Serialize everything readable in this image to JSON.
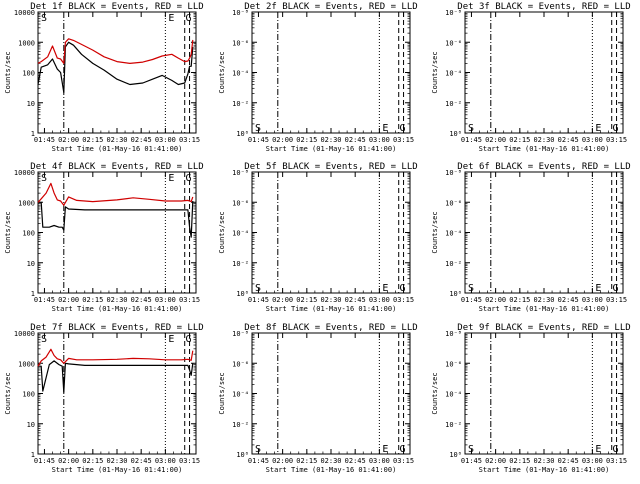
{
  "colors": {
    "events": "#000000",
    "lld": "#d00000",
    "axis": "#000000"
  },
  "panels": [
    {
      "title": "Det 1f BLACK = Events, RED = LLD",
      "xlabel": "Start Time (01-May-16 01:41:00)",
      "ylabel": "Counts/sec",
      "yticks": [
        "1",
        "10",
        "100",
        "1000",
        "10000"
      ],
      "xticks": [
        "01:45",
        "02:00",
        "02:15",
        "02:30",
        "02:45",
        "03:00",
        "03:15"
      ],
      "markers": [
        {
          "label": "S",
          "pos": "top"
        },
        {
          "label": "E",
          "pos": "top"
        },
        {
          "label": "G",
          "pos": "top"
        }
      ]
    },
    {
      "title": "Det 2f BLACK = Events, RED = LLD",
      "xlabel": "Start Time (01-May-16 01:41:00)",
      "ylabel": "Counts/sec",
      "yticks": [
        "10⁰",
        "10⁻²",
        "10⁻⁴",
        "10⁻⁶",
        "10⁻⁸"
      ],
      "xticks": [
        "01:45",
        "02:00",
        "02:15",
        "02:30",
        "02:45",
        "03:00",
        "03:15"
      ],
      "markers": [
        {
          "label": "S",
          "pos": "bottom"
        },
        {
          "label": "E",
          "pos": "bottom"
        },
        {
          "label": "G",
          "pos": "bottom"
        }
      ]
    },
    {
      "title": "Det 3f BLACK = Events, RED = LLD",
      "xlabel": "Start Time (01-May-16 01:41:00)",
      "ylabel": "Counts/sec",
      "yticks": [
        "10⁰",
        "10⁻²",
        "10⁻⁴",
        "10⁻⁶",
        "10⁻⁸"
      ],
      "xticks": [
        "01:45",
        "02:00",
        "02:15",
        "02:30",
        "02:45",
        "03:00",
        "03:15"
      ],
      "markers": [
        {
          "label": "S",
          "pos": "bottom"
        },
        {
          "label": "E",
          "pos": "bottom"
        },
        {
          "label": "G",
          "pos": "bottom"
        }
      ]
    },
    {
      "title": "Det 4f BLACK = Events, RED = LLD",
      "xlabel": "Start Time (01-May-16 01:41:00)",
      "ylabel": "Counts/sec",
      "yticks": [
        "1",
        "10",
        "100",
        "1000",
        "10000"
      ],
      "xticks": [
        "01:45",
        "02:00",
        "02:15",
        "02:30",
        "02:45",
        "03:00",
        "03:15"
      ],
      "markers": [
        {
          "label": "S",
          "pos": "top"
        },
        {
          "label": "E",
          "pos": "top"
        },
        {
          "label": "G",
          "pos": "top"
        }
      ]
    },
    {
      "title": "Det 5f BLACK = Events, RED = LLD",
      "xlabel": "Start Time (01-May-16 01:41:00)",
      "ylabel": "Counts/sec",
      "yticks": [
        "10⁰",
        "10⁻²",
        "10⁻⁴",
        "10⁻⁶",
        "10⁻⁸"
      ],
      "xticks": [
        "01:45",
        "02:00",
        "02:15",
        "02:30",
        "02:45",
        "03:00",
        "03:15"
      ],
      "markers": [
        {
          "label": "S",
          "pos": "bottom"
        },
        {
          "label": "E",
          "pos": "bottom"
        },
        {
          "label": "G",
          "pos": "bottom"
        }
      ]
    },
    {
      "title": "Det 6f BLACK = Events, RED = LLD",
      "xlabel": "Start Time (01-May-16 01:41:00)",
      "ylabel": "Counts/sec",
      "yticks": [
        "10⁰",
        "10⁻²",
        "10⁻⁴",
        "10⁻⁶",
        "10⁻⁸"
      ],
      "xticks": [
        "01:45",
        "02:00",
        "02:15",
        "02:30",
        "02:45",
        "03:00",
        "03:15"
      ],
      "markers": [
        {
          "label": "S",
          "pos": "bottom"
        },
        {
          "label": "E",
          "pos": "bottom"
        },
        {
          "label": "G",
          "pos": "bottom"
        }
      ]
    },
    {
      "title": "Det 7f BLACK = Events, RED = LLD",
      "xlabel": "Start Time (01-May-16 01:41:00)",
      "ylabel": "Counts/sec",
      "yticks": [
        "1",
        "10",
        "100",
        "1000",
        "10000"
      ],
      "xticks": [
        "01:45",
        "02:00",
        "02:15",
        "02:30",
        "02:45",
        "03:00",
        "03:15"
      ],
      "markers": [
        {
          "label": "S",
          "pos": "top"
        },
        {
          "label": "E",
          "pos": "top"
        },
        {
          "label": "G",
          "pos": "top"
        }
      ]
    },
    {
      "title": "Det 8f BLACK = Events, RED = LLD",
      "xlabel": "Start Time (01-May-16 01:41:00)",
      "ylabel": "Counts/sec",
      "yticks": [
        "10⁰",
        "10⁻²",
        "10⁻⁴",
        "10⁻⁶",
        "10⁻⁸"
      ],
      "xticks": [
        "01:45",
        "02:00",
        "02:15",
        "02:30",
        "02:45",
        "03:00",
        "03:15"
      ],
      "markers": [
        {
          "label": "S",
          "pos": "bottom"
        },
        {
          "label": "E",
          "pos": "bottom"
        },
        {
          "label": "G",
          "pos": "bottom"
        }
      ]
    },
    {
      "title": "Det 9f BLACK = Events, RED = LLD",
      "xlabel": "Start Time (01-May-16 01:41:00)",
      "ylabel": "Counts/sec",
      "yticks": [
        "10⁰",
        "10⁻²",
        "10⁻⁴",
        "10⁻⁶",
        "10⁻⁸"
      ],
      "xticks": [
        "01:45",
        "02:00",
        "02:15",
        "02:30",
        "02:45",
        "03:00",
        "03:15"
      ],
      "markers": [
        {
          "label": "S",
          "pos": "bottom"
        },
        {
          "label": "E",
          "pos": "bottom"
        },
        {
          "label": "G",
          "pos": "bottom"
        }
      ]
    }
  ],
  "chart_data": [
    {
      "type": "line",
      "title": "Det 1f BLACK = Events, RED = LLD",
      "xlabel": "Start Time (01-May-16 01:41:00)",
      "ylabel": "Counts/sec",
      "scale": "log",
      "ylim": [
        1,
        10000
      ],
      "xlim": [
        "01:41",
        "03:19"
      ],
      "vlines": [
        {
          "t": "01:57",
          "style": "dash-dot"
        },
        {
          "t": "03:00",
          "style": "dotted"
        },
        {
          "t": "03:12",
          "style": "dashed"
        },
        {
          "t": "03:15",
          "style": "dashed"
        }
      ],
      "series": [
        {
          "name": "Events",
          "color": "#000000",
          "x": [
            "01:41",
            "01:43",
            "01:47",
            "01:50",
            "01:53",
            "01:55",
            "01:57",
            "01:58",
            "02:00",
            "02:03",
            "02:08",
            "02:15",
            "02:22",
            "02:30",
            "02:38",
            "02:46",
            "02:52",
            "02:58",
            "03:04",
            "03:08",
            "03:12",
            "03:14",
            "03:15",
            "03:16",
            "03:17"
          ],
          "y": [
            40,
            150,
            180,
            280,
            130,
            100,
            22,
            700,
            1000,
            800,
            400,
            200,
            120,
            60,
            40,
            45,
            60,
            80,
            55,
            40,
            45,
            90,
            160,
            160,
            700
          ]
        },
        {
          "name": "LLD",
          "color": "#d00000",
          "x": [
            "01:41",
            "01:43",
            "01:47",
            "01:50",
            "01:53",
            "01:55",
            "01:57",
            "01:58",
            "02:00",
            "02:03",
            "02:08",
            "02:15",
            "02:22",
            "02:30",
            "02:38",
            "02:46",
            "02:52",
            "02:58",
            "03:04",
            "03:08",
            "03:12",
            "03:14",
            "03:15",
            "03:16",
            "03:17"
          ],
          "y": [
            200,
            230,
            330,
            750,
            300,
            280,
            200,
            1000,
            1300,
            1150,
            850,
            550,
            330,
            230,
            200,
            220,
            270,
            350,
            400,
            300,
            230,
            240,
            300,
            400,
            1200
          ]
        }
      ]
    },
    {
      "type": "line",
      "title": "Det 2f BLACK = Events, RED = LLD",
      "xlabel": "Start Time (01-May-16 01:41:00)",
      "ylabel": "Counts/sec",
      "scale": "log",
      "ylim": [
        "10^0",
        "10^-8"
      ],
      "series": [],
      "vlines": [
        {
          "t": "01:57",
          "style": "dash-dot"
        },
        {
          "t": "03:00",
          "style": "dotted"
        },
        {
          "t": "03:12",
          "style": "dashed"
        },
        {
          "t": "03:15",
          "style": "dashed"
        }
      ]
    },
    {
      "type": "line",
      "title": "Det 3f BLACK = Events, RED = LLD",
      "xlabel": "Start Time (01-May-16 01:41:00)",
      "ylabel": "Counts/sec",
      "scale": "log",
      "ylim": [
        "10^0",
        "10^-8"
      ],
      "series": [],
      "vlines": [
        {
          "t": "01:57",
          "style": "dash-dot"
        },
        {
          "t": "03:00",
          "style": "dotted"
        },
        {
          "t": "03:12",
          "style": "dashed"
        },
        {
          "t": "03:15",
          "style": "dashed"
        }
      ]
    },
    {
      "type": "line",
      "title": "Det 4f BLACK = Events, RED = LLD",
      "xlabel": "Start Time (01-May-16 01:41:00)",
      "ylabel": "Counts/sec",
      "scale": "log",
      "ylim": [
        1,
        10000
      ],
      "xlim": [
        "01:41",
        "03:19"
      ],
      "vlines": [
        {
          "t": "01:57",
          "style": "dash-dot"
        },
        {
          "t": "03:00",
          "style": "dotted"
        },
        {
          "t": "03:12",
          "style": "dashed"
        },
        {
          "t": "03:15",
          "style": "dashed"
        }
      ],
      "series": [
        {
          "name": "Events",
          "color": "#000000",
          "x": [
            "01:41",
            "01:43",
            "01:44",
            "01:48",
            "01:51",
            "01:54",
            "01:56",
            "01:57",
            "01:58",
            "02:00",
            "02:10",
            "02:30",
            "02:50",
            "03:10",
            "03:14",
            "03:15",
            "03:16",
            "03:17"
          ],
          "y": [
            1000,
            1000,
            150,
            150,
            170,
            150,
            150,
            120,
            700,
            600,
            560,
            560,
            560,
            560,
            560,
            150,
            70,
            1100
          ]
        },
        {
          "name": "LLD",
          "color": "#d00000",
          "x": [
            "01:41",
            "01:43",
            "01:46",
            "01:49",
            "01:51",
            "01:53",
            "01:55",
            "01:57",
            "02:00",
            "02:05",
            "02:15",
            "02:30",
            "02:40",
            "02:50",
            "03:00",
            "03:10",
            "03:14",
            "03:15",
            "03:16",
            "03:17"
          ],
          "y": [
            1000,
            1300,
            2000,
            4200,
            2000,
            1200,
            1100,
            800,
            1500,
            1150,
            1050,
            1200,
            1400,
            1250,
            1100,
            1100,
            1150,
            1100,
            1050,
            1500
          ]
        }
      ]
    },
    {
      "type": "line",
      "title": "Det 5f BLACK = Events, RED = LLD",
      "xlabel": "Start Time (01-May-16 01:41:00)",
      "ylabel": "Counts/sec",
      "scale": "log",
      "ylim": [
        "10^0",
        "10^-8"
      ],
      "series": [],
      "vlines": [
        {
          "t": "01:57",
          "style": "dash-dot"
        },
        {
          "t": "03:00",
          "style": "dotted"
        },
        {
          "t": "03:12",
          "style": "dashed"
        },
        {
          "t": "03:15",
          "style": "dashed"
        }
      ]
    },
    {
      "type": "line",
      "title": "Det 6f BLACK = Events, RED = LLD",
      "xlabel": "Start Time (01-May-16 01:41:00)",
      "ylabel": "Counts/sec",
      "scale": "log",
      "ylim": [
        "10^0",
        "10^-8"
      ],
      "series": [],
      "vlines": [
        {
          "t": "01:57",
          "style": "dash-dot"
        },
        {
          "t": "03:00",
          "style": "dotted"
        },
        {
          "t": "03:12",
          "style": "dashed"
        },
        {
          "t": "03:15",
          "style": "dashed"
        }
      ]
    },
    {
      "type": "line",
      "title": "Det 7f BLACK = Events, RED = LLD",
      "xlabel": "Start Time (01-May-16 01:41:00)",
      "ylabel": "Counts/sec",
      "scale": "log",
      "ylim": [
        1,
        10000
      ],
      "xlim": [
        "01:41",
        "03:19"
      ],
      "vlines": [
        {
          "t": "01:57",
          "style": "dash-dot"
        },
        {
          "t": "03:00",
          "style": "dotted"
        },
        {
          "t": "03:12",
          "style": "dashed"
        },
        {
          "t": "03:15",
          "style": "dashed"
        }
      ],
      "series": [
        {
          "name": "Events",
          "color": "#000000",
          "x": [
            "01:41",
            "01:43",
            "01:44",
            "01:48",
            "01:51",
            "01:54",
            "01:56",
            "01:57",
            "01:58",
            "02:00",
            "02:10",
            "02:30",
            "02:50",
            "03:10",
            "03:14",
            "03:15",
            "03:16",
            "03:17"
          ],
          "y": [
            800,
            800,
            120,
            900,
            1200,
            900,
            800,
            110,
            1000,
            950,
            850,
            850,
            850,
            850,
            850,
            600,
            400,
            1000
          ]
        },
        {
          "name": "LLD",
          "color": "#d00000",
          "x": [
            "01:41",
            "01:43",
            "01:46",
            "01:49",
            "01:51",
            "01:53",
            "01:55",
            "01:57",
            "02:00",
            "02:05",
            "02:15",
            "02:30",
            "02:40",
            "02:50",
            "03:00",
            "03:10",
            "03:14",
            "03:15",
            "03:16",
            "03:17"
          ],
          "y": [
            800,
            1200,
            1600,
            2900,
            1800,
            1400,
            1300,
            1000,
            1450,
            1300,
            1300,
            1350,
            1450,
            1400,
            1300,
            1300,
            1350,
            1300,
            1250,
            2600
          ]
        }
      ]
    },
    {
      "type": "line",
      "title": "Det 8f BLACK = Events, RED = LLD",
      "xlabel": "Start Time (01-May-16 01:41:00)",
      "ylabel": "Counts/sec",
      "scale": "log",
      "ylim": [
        "10^0",
        "10^-8"
      ],
      "series": [],
      "vlines": [
        {
          "t": "01:57",
          "style": "dash-dot"
        },
        {
          "t": "03:00",
          "style": "dotted"
        },
        {
          "t": "03:12",
          "style": "dashed"
        },
        {
          "t": "03:15",
          "style": "dashed"
        }
      ]
    },
    {
      "type": "line",
      "title": "Det 9f BLACK = Events, RED = LLD",
      "xlabel": "Start Time (01-May-16 01:41:00)",
      "ylabel": "Counts/sec",
      "scale": "log",
      "ylim": [
        "10^0",
        "10^-8"
      ],
      "series": [],
      "vlines": [
        {
          "t": "01:57",
          "style": "dash-dot"
        },
        {
          "t": "03:00",
          "style": "dotted"
        },
        {
          "t": "03:12",
          "style": "dashed"
        },
        {
          "t": "03:15",
          "style": "dashed"
        }
      ]
    }
  ]
}
